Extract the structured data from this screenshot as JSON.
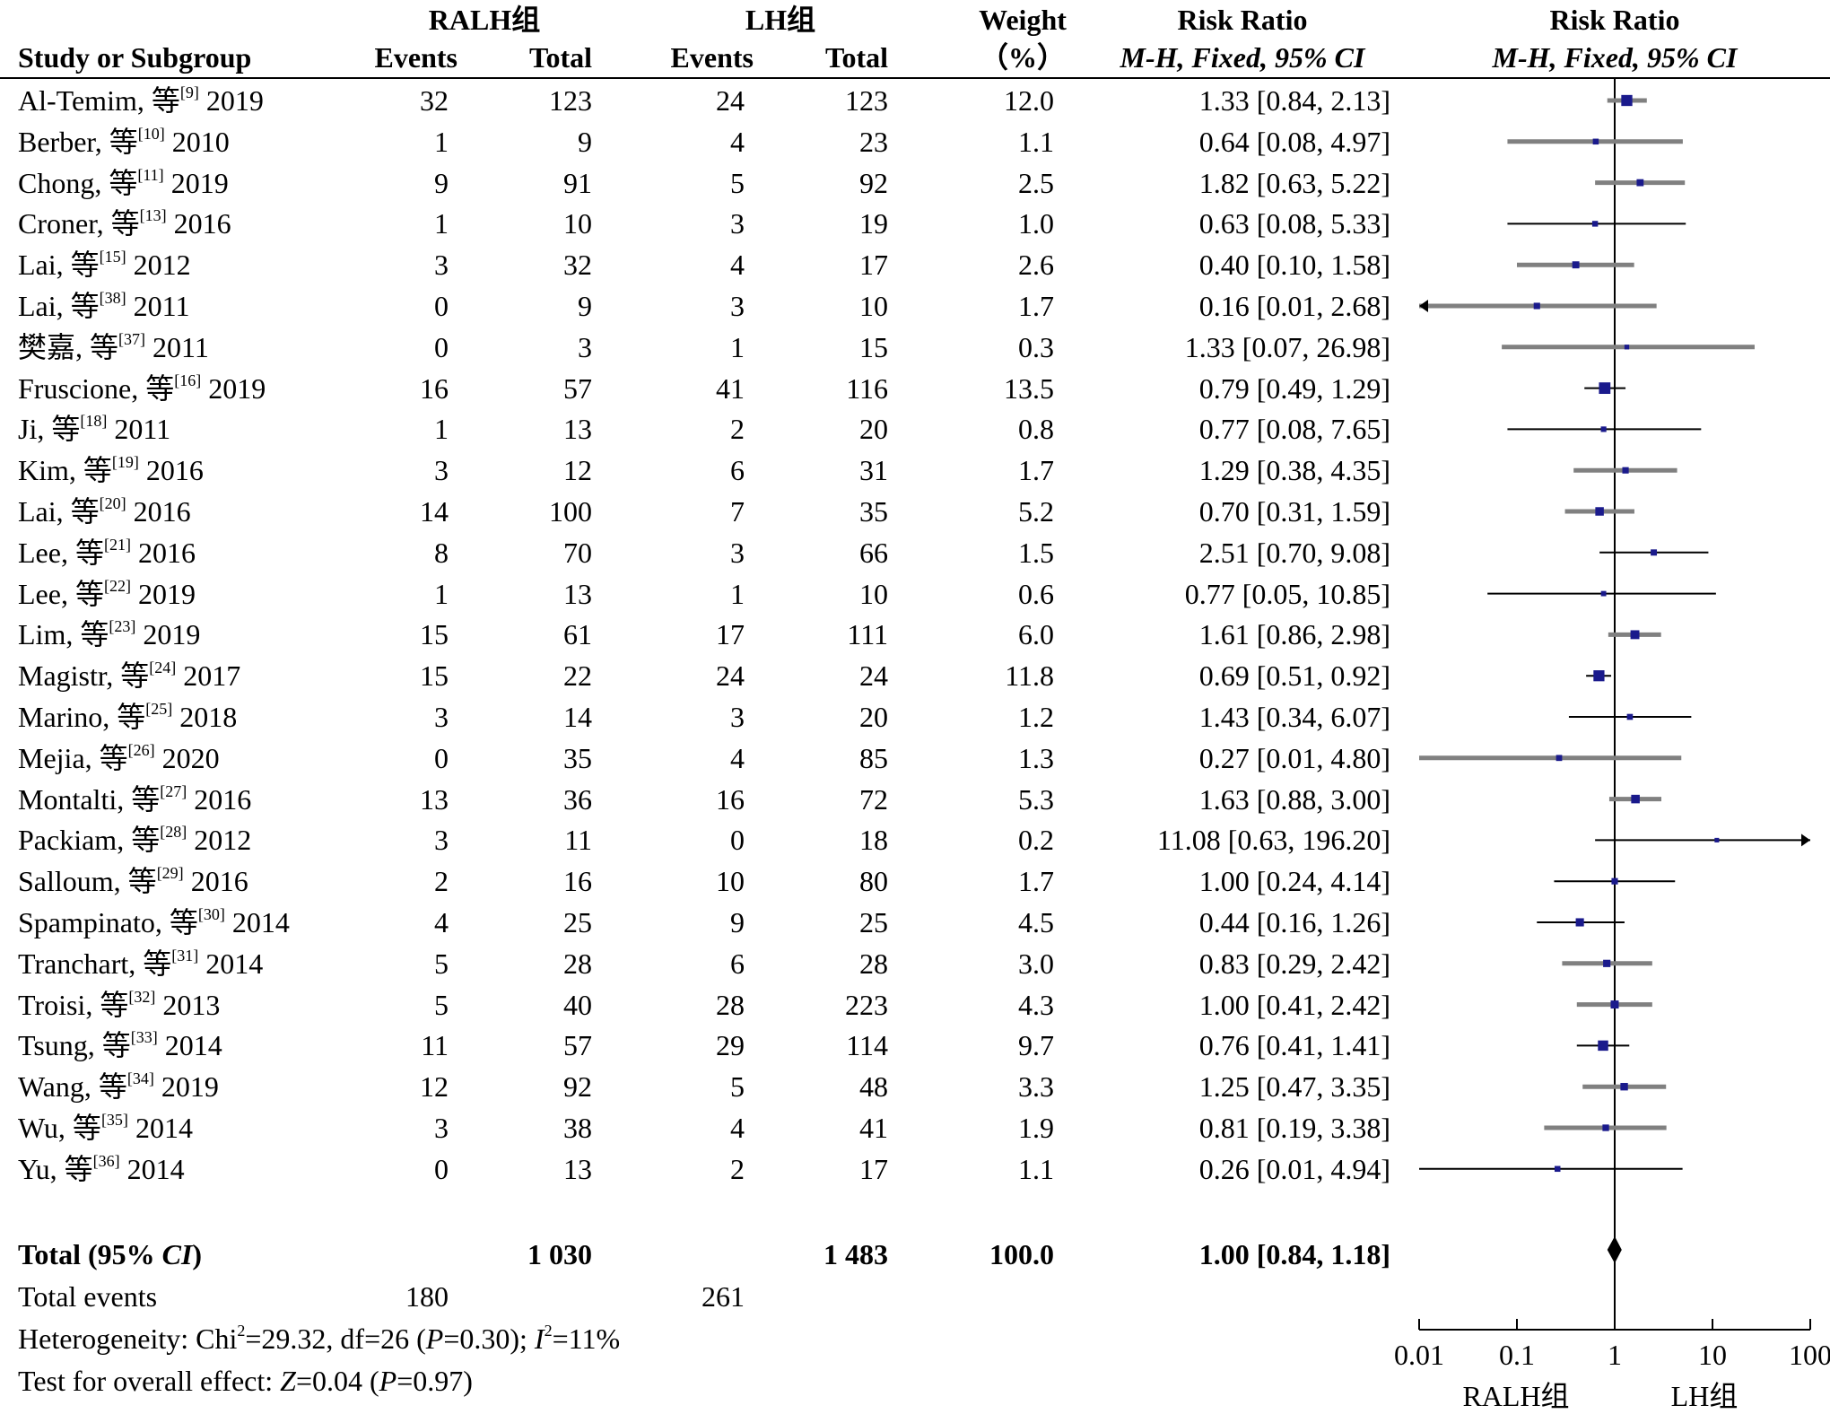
{
  "header": {
    "group1": "RALH组",
    "group2": "LH组",
    "study_col": "Study or Subgroup",
    "events1": "Events",
    "total1": "Total",
    "events2": "Events",
    "total2": "Total",
    "weight1": "Weight",
    "weight2": "（%）",
    "rr_title": "Risk Ratio",
    "rr_method_a": "M-H, Fixed, 95% ",
    "rr_method_b": "CI",
    "plot_title": "Risk Ratio",
    "plot_method_a": "M-H, Fixed, 95% ",
    "plot_method_b": "CI"
  },
  "summary": {
    "total_label_a": "Total (95% ",
    "total_label_b": "CI",
    "total_label_c": ")",
    "total1": "1 030",
    "total2": "1 483",
    "weight": "100.0",
    "rr": "1.00 [0.84, 1.18]",
    "events_label": "Total events",
    "events1": "180",
    "events2": "261",
    "het_a": "Heterogeneity: Chi",
    "het_sup": "2",
    "het_b": "=29.32, df=26 (",
    "het_p": "P",
    "het_c": "=0.30); ",
    "het_i": "I",
    "het_sup2": "2",
    "het_d": "=11%",
    "overall_a": "Test for overall effect: ",
    "overall_z": "Z",
    "overall_b": "=0.04 (",
    "overall_p": "P",
    "overall_c": "=0.97)"
  },
  "chart_data": {
    "type": "forest",
    "x_scale": "log",
    "xlim": [
      0.01,
      100
    ],
    "x_ticks": [
      "0.01",
      "0.1",
      "1",
      "10",
      "100"
    ],
    "x_tick_values": [
      0.01,
      0.1,
      1,
      10,
      100
    ],
    "favours_left": "RALH组",
    "favours_right": "LH组",
    "overall": {
      "rr": 1.0,
      "lo": 0.84,
      "hi": 1.18
    },
    "studies": [
      {
        "author": "Al-Temim, 等",
        "ref": "[9]",
        "year": "2019",
        "e1": "32",
        "n1": "123",
        "e2": "24",
        "n2": "123",
        "w": "12.0",
        "ci": "1.33 [0.84, 2.13]",
        "rr": 1.33,
        "lo": 0.84,
        "hi": 2.13,
        "weight": 12.0
      },
      {
        "author": "Berber, 等",
        "ref": "[10]",
        "year": "2010",
        "e1": "1",
        "n1": "9",
        "e2": "4",
        "n2": "23",
        "w": "1.1",
        "ci": "0.64 [0.08, 4.97]",
        "rr": 0.64,
        "lo": 0.08,
        "hi": 4.97,
        "weight": 1.1
      },
      {
        "author": "Chong, 等",
        "ref": "[11]",
        "year": "2019",
        "e1": "9",
        "n1": "91",
        "e2": "5",
        "n2": "92",
        "w": "2.5",
        "ci": "1.82 [0.63, 5.22]",
        "rr": 1.82,
        "lo": 0.63,
        "hi": 5.22,
        "weight": 2.5
      },
      {
        "author": "Croner, 等",
        "ref": "[13]",
        "year": "2016",
        "e1": "1",
        "n1": "10",
        "e2": "3",
        "n2": "19",
        "w": "1.0",
        "ci": "0.63 [0.08, 5.33]",
        "rr": 0.63,
        "lo": 0.08,
        "hi": 5.33,
        "weight": 1.0
      },
      {
        "author": "Lai, 等",
        "ref": "[15]",
        "year": "2012",
        "e1": "3",
        "n1": "32",
        "e2": "4",
        "n2": "17",
        "w": "2.6",
        "ci": "0.40 [0.10, 1.58]",
        "rr": 0.4,
        "lo": 0.1,
        "hi": 1.58,
        "weight": 2.6
      },
      {
        "author": "Lai, 等",
        "ref": "[38]",
        "year": "2011",
        "e1": "0",
        "n1": "9",
        "e2": "3",
        "n2": "10",
        "w": "1.7",
        "ci": "0.16 [0.01, 2.68]",
        "rr": 0.16,
        "lo": 0.01,
        "hi": 2.68,
        "weight": 1.7
      },
      {
        "author": "樊嘉, 等",
        "ref": "[37]",
        "year": "2011",
        "e1": "0",
        "n1": "3",
        "e2": "1",
        "n2": "15",
        "w": "0.3",
        "ci": "1.33 [0.07, 26.98]",
        "rr": 1.33,
        "lo": 0.07,
        "hi": 26.98,
        "weight": 0.3
      },
      {
        "author": "Fruscione, 等",
        "ref": "[16]",
        "year": "2019",
        "e1": "16",
        "n1": "57",
        "e2": "41",
        "n2": "116",
        "w": "13.5",
        "ci": "0.79 [0.49, 1.29]",
        "rr": 0.79,
        "lo": 0.49,
        "hi": 1.29,
        "weight": 13.5
      },
      {
        "author": "Ji, 等",
        "ref": "[18]",
        "year": "2011",
        "e1": "1",
        "n1": "13",
        "e2": "2",
        "n2": "20",
        "w": "0.8",
        "ci": "0.77 [0.08, 7.65]",
        "rr": 0.77,
        "lo": 0.08,
        "hi": 7.65,
        "weight": 0.8
      },
      {
        "author": "Kim, 等",
        "ref": "[19]",
        "year": "2016",
        "e1": "3",
        "n1": "12",
        "e2": "6",
        "n2": "31",
        "w": "1.7",
        "ci": "1.29 [0.38, 4.35]",
        "rr": 1.29,
        "lo": 0.38,
        "hi": 4.35,
        "weight": 1.7
      },
      {
        "author": "Lai, 等",
        "ref": "[20]",
        "year": "2016",
        "e1": "14",
        "n1": "100",
        "e2": "7",
        "n2": "35",
        "w": "5.2",
        "ci": "0.70 [0.31, 1.59]",
        "rr": 0.7,
        "lo": 0.31,
        "hi": 1.59,
        "weight": 5.2
      },
      {
        "author": "Lee, 等",
        "ref": "[21]",
        "year": "2016",
        "e1": "8",
        "n1": "70",
        "e2": "3",
        "n2": "66",
        "w": "1.5",
        "ci": "2.51 [0.70, 9.08]",
        "rr": 2.51,
        "lo": 0.7,
        "hi": 9.08,
        "weight": 1.5
      },
      {
        "author": "Lee, 等",
        "ref": "[22]",
        "year": "2019",
        "e1": "1",
        "n1": "13",
        "e2": "1",
        "n2": "10",
        "w": "0.6",
        "ci": "0.77 [0.05, 10.85]",
        "rr": 0.77,
        "lo": 0.05,
        "hi": 10.85,
        "weight": 0.6
      },
      {
        "author": "Lim, 等",
        "ref": "[23]",
        "year": "2019",
        "e1": "15",
        "n1": "61",
        "e2": "17",
        "n2": "111",
        "w": "6.0",
        "ci": "1.61 [0.86, 2.98]",
        "rr": 1.61,
        "lo": 0.86,
        "hi": 2.98,
        "weight": 6.0
      },
      {
        "author": "Magistr, 等",
        "ref": "[24]",
        "year": "2017",
        "e1": "15",
        "n1": "22",
        "e2": "24",
        "n2": "24",
        "w": "11.8",
        "ci": "0.69 [0.51, 0.92]",
        "rr": 0.69,
        "lo": 0.51,
        "hi": 0.92,
        "weight": 11.8
      },
      {
        "author": "Marino, 等",
        "ref": "[25]",
        "year": "2018",
        "e1": "3",
        "n1": "14",
        "e2": "3",
        "n2": "20",
        "w": "1.2",
        "ci": "1.43 [0.34, 6.07]",
        "rr": 1.43,
        "lo": 0.34,
        "hi": 6.07,
        "weight": 1.2
      },
      {
        "author": "Mejia, 等",
        "ref": "[26]",
        "year": "2020",
        "e1": "0",
        "n1": "35",
        "e2": "4",
        "n2": "85",
        "w": "1.3",
        "ci": "0.27 [0.01, 4.80]",
        "rr": 0.27,
        "lo": 0.01,
        "hi": 4.8,
        "weight": 1.3
      },
      {
        "author": "Montalti, 等",
        "ref": "[27]",
        "year": "2016",
        "e1": "13",
        "n1": "36",
        "e2": "16",
        "n2": "72",
        "w": "5.3",
        "ci": "1.63 [0.88, 3.00]",
        "rr": 1.63,
        "lo": 0.88,
        "hi": 3.0,
        "weight": 5.3
      },
      {
        "author": "Packiam, 等",
        "ref": "[28]",
        "year": "2012",
        "e1": "3",
        "n1": "11",
        "e2": "0",
        "n2": "18",
        "w": "0.2",
        "ci": "11.08 [0.63, 196.20]",
        "rr": 11.08,
        "lo": 0.63,
        "hi": 196.2,
        "weight": 0.2
      },
      {
        "author": "Salloum, 等",
        "ref": "[29]",
        "year": "2016",
        "e1": "2",
        "n1": "16",
        "e2": "10",
        "n2": "80",
        "w": "1.7",
        "ci": "1.00 [0.24, 4.14]",
        "rr": 1.0,
        "lo": 0.24,
        "hi": 4.14,
        "weight": 1.7
      },
      {
        "author": "Spampinato, 等",
        "ref": "[30]",
        "year": "2014",
        "e1": "4",
        "n1": "25",
        "e2": "9",
        "n2": "25",
        "w": "4.5",
        "ci": "0.44 [0.16, 1.26]",
        "rr": 0.44,
        "lo": 0.16,
        "hi": 1.26,
        "weight": 4.5
      },
      {
        "author": "Tranchart, 等",
        "ref": "[31]",
        "year": "2014",
        "e1": "5",
        "n1": "28",
        "e2": "6",
        "n2": "28",
        "w": "3.0",
        "ci": "0.83 [0.29, 2.42]",
        "rr": 0.83,
        "lo": 0.29,
        "hi": 2.42,
        "weight": 3.0
      },
      {
        "author": "Troisi, 等",
        "ref": "[32]",
        "year": "2013",
        "e1": "5",
        "n1": "40",
        "e2": "28",
        "n2": "223",
        "w": "4.3",
        "ci": "1.00 [0.41, 2.42]",
        "rr": 1.0,
        "lo": 0.41,
        "hi": 2.42,
        "weight": 4.3
      },
      {
        "author": "Tsung, 等",
        "ref": "[33]",
        "year": "2014",
        "e1": "11",
        "n1": "57",
        "e2": "29",
        "n2": "114",
        "w": "9.7",
        "ci": "0.76 [0.41, 1.41]",
        "rr": 0.76,
        "lo": 0.41,
        "hi": 1.41,
        "weight": 9.7
      },
      {
        "author": "Wang, 等",
        "ref": "[34]",
        "year": "2019",
        "e1": "12",
        "n1": "92",
        "e2": "5",
        "n2": "48",
        "w": "3.3",
        "ci": "1.25 [0.47, 3.35]",
        "rr": 1.25,
        "lo": 0.47,
        "hi": 3.35,
        "weight": 3.3
      },
      {
        "author": "Wu, 等",
        "ref": "[35]",
        "year": "2014",
        "e1": "3",
        "n1": "38",
        "e2": "4",
        "n2": "41",
        "w": "1.9",
        "ci": "0.81 [0.19, 3.38]",
        "rr": 0.81,
        "lo": 0.19,
        "hi": 3.38,
        "weight": 1.9
      },
      {
        "author": "Yu, 等",
        "ref": "[36]",
        "year": "2014",
        "e1": "0",
        "n1": "13",
        "e2": "2",
        "n2": "17",
        "w": "1.1",
        "ci": "0.26 [0.01, 4.94]",
        "rr": 0.26,
        "lo": 0.01,
        "hi": 4.94,
        "weight": 1.1
      }
    ]
  },
  "colors": {
    "square": "#1a1a8c",
    "ci_gray": "#808080",
    "ci_black": "#000000"
  }
}
